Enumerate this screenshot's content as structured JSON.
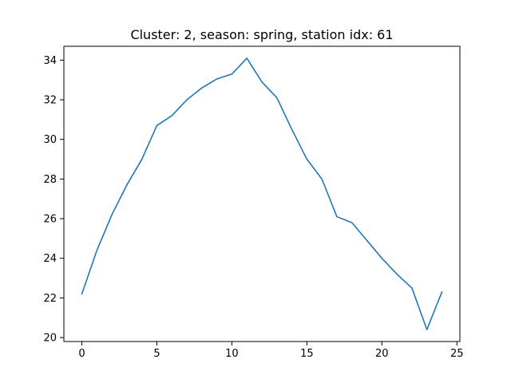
{
  "chart_data": {
    "type": "line",
    "title": "Cluster: 2, season: spring, station idx: 61",
    "xlabel": "",
    "ylabel": "",
    "xlim": [
      -1.2,
      25.2
    ],
    "ylim": [
      19.8,
      34.7
    ],
    "x_ticks": [
      0,
      5,
      10,
      15,
      20,
      25
    ],
    "y_ticks": [
      20,
      22,
      24,
      26,
      28,
      30,
      32,
      34
    ],
    "grid": false,
    "legend": "none",
    "series": [
      {
        "color": "#1f77b4",
        "x": [
          0,
          1,
          2,
          3,
          4,
          5,
          6,
          7,
          8,
          9,
          10,
          11,
          12,
          13,
          14,
          15,
          16,
          17,
          18,
          19,
          20,
          21,
          22,
          23,
          24
        ],
        "y": [
          22.2,
          24.4,
          26.2,
          27.7,
          29.0,
          30.7,
          31.2,
          32.0,
          32.6,
          33.05,
          33.3,
          34.1,
          32.9,
          32.1,
          30.5,
          29.0,
          28.0,
          26.1,
          25.8,
          24.9,
          24.0,
          23.2,
          22.5,
          20.4,
          22.3
        ]
      }
    ]
  }
}
